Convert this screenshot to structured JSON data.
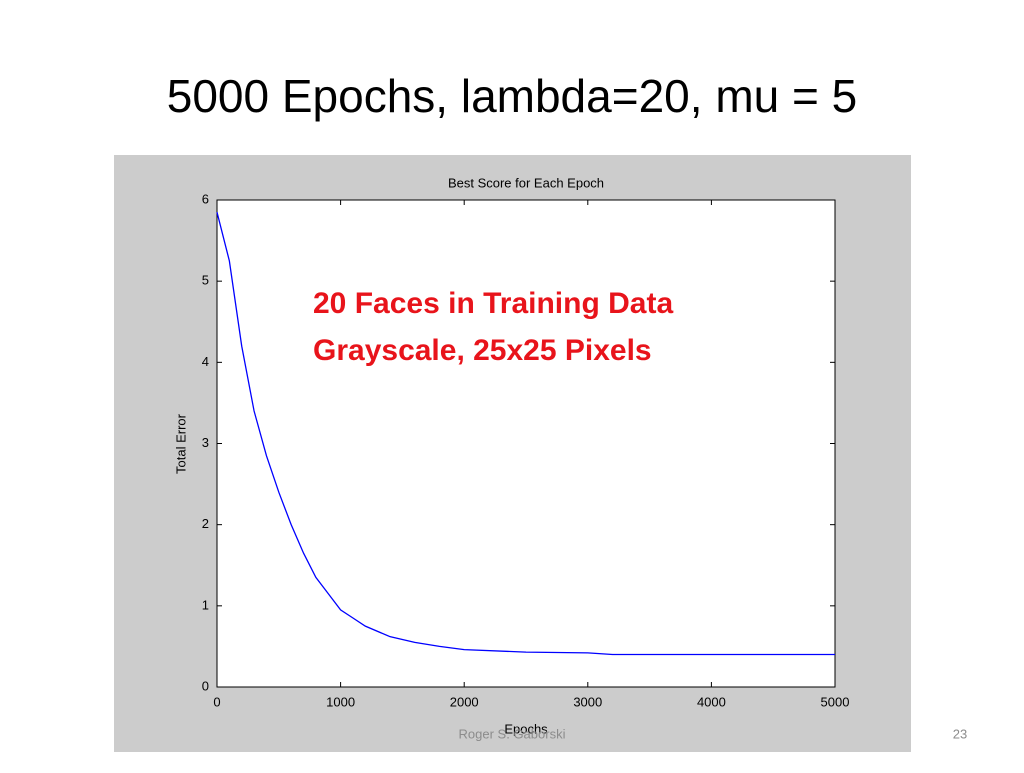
{
  "slide": {
    "title": "5000 Epochs, lambda=20, mu = 5",
    "footer": "Roger S. Gaborski",
    "page_number": "23"
  },
  "chart_data": {
    "type": "line",
    "title": "Best Score for Each Epoch",
    "x_label": "Epochs",
    "y_label": "Total Error",
    "annotations": [
      "20 Faces in Training Data",
      "Grayscale, 25x25 Pixels"
    ],
    "annotation_color": "#e8141b",
    "x": [
      0,
      100,
      200,
      300,
      400,
      500,
      600,
      700,
      800,
      900,
      1000,
      1100,
      1200,
      1400,
      1600,
      1800,
      2000,
      2500,
      3000,
      3200,
      4000,
      5000
    ],
    "series": [
      {
        "name": "Best Score",
        "color": "#0000ff",
        "values": [
          5.85,
          5.25,
          4.2,
          3.4,
          2.85,
          2.4,
          2.0,
          1.65,
          1.35,
          1.15,
          0.95,
          0.85,
          0.75,
          0.62,
          0.55,
          0.5,
          0.46,
          0.43,
          0.42,
          0.4,
          0.4,
          0.4
        ]
      }
    ],
    "xlim": [
      0,
      5000
    ],
    "xticks": [
      0,
      1000,
      2000,
      3000,
      4000,
      5000
    ],
    "ylim": [
      0,
      6
    ],
    "yticks": [
      0,
      1,
      2,
      3,
      4,
      5,
      6
    ],
    "grid": false
  }
}
